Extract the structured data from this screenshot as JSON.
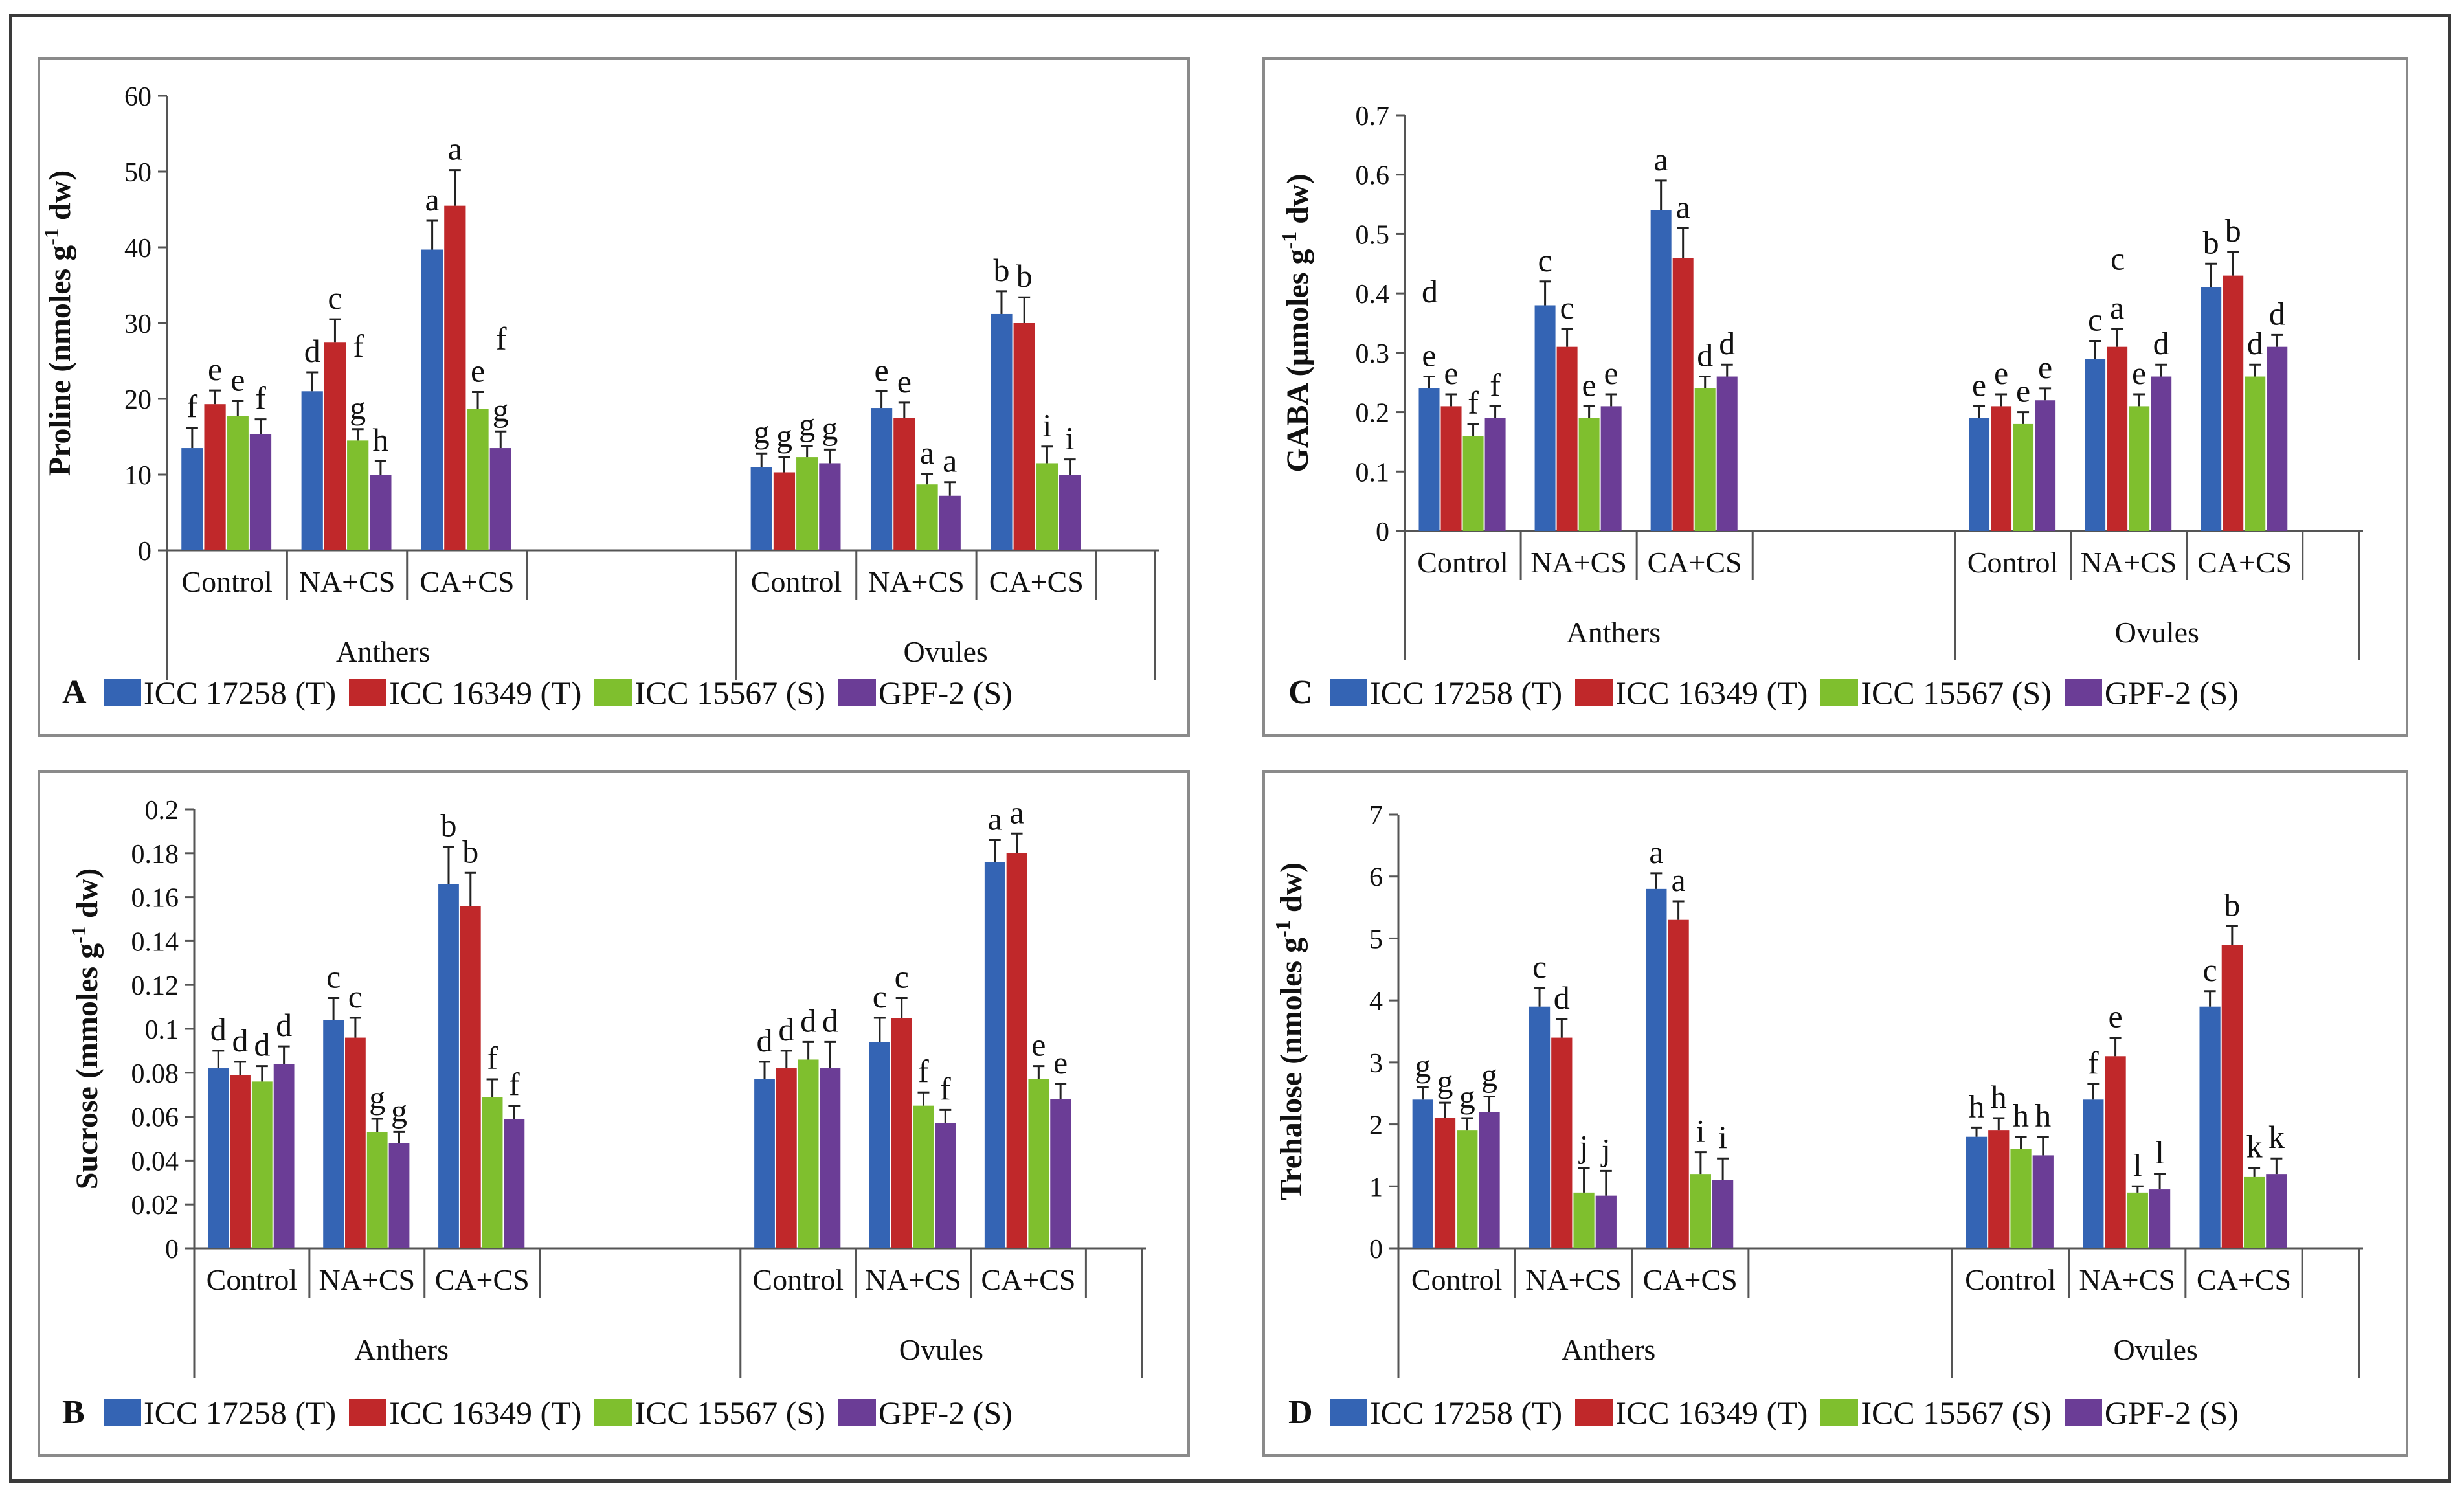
{
  "legend": [
    {
      "label": "ICC 17258 (T)",
      "color": "#3464b4"
    },
    {
      "label": "ICC 16349 (T)",
      "color": "#c0282a"
    },
    {
      "label": "ICC 15567 (S)",
      "color": "#7fbf2e"
    },
    {
      "label": "GPF-2 (S)",
      "color": "#6b3d96"
    }
  ],
  "chart_data": [
    {
      "panel": "A",
      "type": "bar",
      "ylabel": "Proline (nmoles g-1 dw)",
      "ylabel_prefix": "Proline (nmoles g",
      "ylabel_sup": "-1",
      "ylabel_suffix": " dw)",
      "ylim": [
        0,
        60
      ],
      "yticks": [
        0,
        10,
        20,
        30,
        40,
        50,
        60
      ],
      "ytick_labels": [
        "0",
        "10",
        "20",
        "30",
        "40",
        "50",
        "60"
      ],
      "tissues": [
        "Anthers",
        "Ovules"
      ],
      "categories": [
        "Control",
        "NA+CS",
        "CA+CS"
      ],
      "series": [
        {
          "name": "ICC 17258 (T)",
          "values": [
            [
              13.5,
              21,
              39.7
            ],
            [
              11,
              18.8,
              31.2
            ]
          ],
          "errors": [
            [
              2.7,
              2.5,
              3.8
            ],
            [
              1.8,
              2.2,
              3
            ]
          ],
          "letters": [
            [
              "f",
              "d",
              "a"
            ],
            [
              "g",
              "e",
              "b"
            ]
          ]
        },
        {
          "name": "ICC 16349 (T)",
          "values": [
            [
              19.3,
              27.5,
              45.5
            ],
            [
              10.3,
              17.5,
              30
            ]
          ],
          "errors": [
            [
              1.8,
              3,
              4.7
            ],
            [
              2,
              2,
              3.4
            ]
          ],
          "letters": [
            [
              "e",
              "c",
              "a"
            ],
            [
              "g",
              "e",
              "b"
            ]
          ]
        },
        {
          "name": "ICC 15567 (S)",
          "values": [
            [
              17.7,
              14.5,
              18.7
            ],
            [
              12.3,
              8.7,
              11.5
            ]
          ],
          "errors": [
            [
              2,
              1.5,
              2.2
            ],
            [
              1.5,
              1.4,
              2.2
            ]
          ],
          "letters": [
            [
              "e",
              "g",
              "e"
            ],
            [
              "g",
              "a",
              "i"
            ]
          ]
        },
        {
          "name": "GPF-2 (S)",
          "values": [
            [
              15.3,
              10,
              13.5
            ],
            [
              11.5,
              7.2,
              10
            ]
          ],
          "errors": [
            [
              2,
              1.8,
              2.2
            ],
            [
              1.8,
              1.8,
              2
            ]
          ],
          "letters": [
            [
              "f",
              "h",
              "g"
            ],
            [
              "g",
              "a",
              "i"
            ]
          ]
        }
      ],
      "extra_letters": [
        [
          "f",
          2,
          1,
          25.5
        ],
        [
          "f",
          0,
          3,
          26.5
        ]
      ]
    },
    {
      "panel": "B",
      "type": "bar",
      "ylabel": "Sucrose (mmoles g-1 dw)",
      "ylabel_prefix": "Sucrose (mmoles g",
      "ylabel_sup": "-1",
      "ylabel_suffix": " dw)",
      "ylim": [
        0,
        0.2
      ],
      "yticks": [
        0,
        0.02,
        0.04,
        0.06,
        0.08,
        0.1,
        0.12,
        0.14,
        0.16,
        0.18,
        0.2
      ],
      "ytick_labels": [
        "0",
        "0.02",
        "0.04",
        "0.06",
        "0.08",
        "0.1",
        "0.12",
        "0.14",
        "0.16",
        "0.18",
        "0.2"
      ],
      "tissues": [
        "Anthers",
        "Ovules"
      ],
      "categories": [
        "Control",
        "NA+CS",
        "CA+CS"
      ],
      "series": [
        {
          "name": "ICC 17258 (T)",
          "values": [
            [
              0.082,
              0.104,
              0.166
            ],
            [
              0.077,
              0.094,
              0.176
            ]
          ],
          "errors": [
            [
              0.008,
              0.01,
              0.017
            ],
            [
              0.008,
              0.011,
              0.01
            ]
          ],
          "letters": [
            [
              "d",
              "c",
              "b"
            ],
            [
              "d",
              "c",
              "a"
            ]
          ]
        },
        {
          "name": "ICC 16349 (T)",
          "values": [
            [
              0.079,
              0.096,
              0.156
            ],
            [
              0.082,
              0.105,
              0.18
            ]
          ],
          "errors": [
            [
              0.006,
              0.009,
              0.015
            ],
            [
              0.008,
              0.009,
              0.009
            ]
          ],
          "letters": [
            [
              "d",
              "c",
              "b"
            ],
            [
              "d",
              "c",
              "a"
            ]
          ]
        },
        {
          "name": "ICC 15567 (S)",
          "values": [
            [
              0.076,
              0.053,
              0.069
            ],
            [
              0.086,
              0.065,
              0.077
            ]
          ],
          "errors": [
            [
              0.007,
              0.006,
              0.008
            ],
            [
              0.008,
              0.006,
              0.006
            ]
          ],
          "letters": [
            [
              "d",
              "g",
              "f"
            ],
            [
              "d",
              "f",
              "e"
            ]
          ]
        },
        {
          "name": "GPF-2 (S)",
          "values": [
            [
              0.084,
              0.048,
              0.059
            ],
            [
              0.082,
              0.057,
              0.068
            ]
          ],
          "errors": [
            [
              0.008,
              0.005,
              0.006
            ],
            [
              0.012,
              0.006,
              0.007
            ]
          ],
          "letters": [
            [
              "d",
              "g",
              "f"
            ],
            [
              "d",
              "f",
              "e"
            ]
          ]
        }
      ],
      "extra_letters": []
    },
    {
      "panel": "C",
      "type": "bar",
      "ylabel": "GABA (µmoles g-1 dw)",
      "ylabel_prefix": "GABA (µmoles g",
      "ylabel_sup": "-1",
      "ylabel_suffix": " dw)",
      "ylim": [
        0,
        0.7
      ],
      "yticks": [
        0,
        0.1,
        0.2,
        0.3,
        0.4,
        0.5,
        0.6,
        0.7
      ],
      "ytick_labels": [
        "0",
        "0.1",
        "0.2",
        "0.3",
        "0.4",
        "0.5",
        "0.6",
        "0.7"
      ],
      "tissues": [
        "Anthers",
        "Ovules"
      ],
      "categories": [
        "Control",
        "NA+CS",
        "CA+CS"
      ],
      "series": [
        {
          "name": "ICC 17258 (T)",
          "values": [
            [
              0.24,
              0.38,
              0.54
            ],
            [
              0.19,
              0.29,
              0.41
            ]
          ],
          "errors": [
            [
              0.02,
              0.04,
              0.05
            ],
            [
              0.02,
              0.03,
              0.04
            ]
          ],
          "letters": [
            [
              "e",
              "c",
              "a"
            ],
            [
              "e",
              "c",
              "b"
            ]
          ]
        },
        {
          "name": "ICC 16349 (T)",
          "values": [
            [
              0.21,
              0.31,
              0.46
            ],
            [
              0.21,
              0.31,
              0.43
            ]
          ],
          "errors": [
            [
              0.02,
              0.03,
              0.05
            ],
            [
              0.02,
              0.03,
              0.04
            ]
          ],
          "letters": [
            [
              "e",
              "c",
              "a"
            ],
            [
              "e",
              "a",
              "b"
            ]
          ]
        },
        {
          "name": "ICC 15567 (S)",
          "values": [
            [
              0.16,
              0.19,
              0.24
            ],
            [
              0.18,
              0.21,
              0.26
            ]
          ],
          "errors": [
            [
              0.02,
              0.02,
              0.02
            ],
            [
              0.02,
              0.02,
              0.02
            ]
          ],
          "letters": [
            [
              "f",
              "e",
              "d"
            ],
            [
              "e",
              "e",
              "d"
            ]
          ]
        },
        {
          "name": "GPF-2 (S)",
          "values": [
            [
              0.19,
              0.21,
              0.26
            ],
            [
              0.22,
              0.26,
              0.31
            ]
          ],
          "errors": [
            [
              0.02,
              0.02,
              0.02
            ],
            [
              0.02,
              0.02,
              0.02
            ]
          ],
          "letters": [
            [
              "f",
              "e",
              "d"
            ],
            [
              "e",
              "d",
              "d"
            ]
          ]
        }
      ],
      "extra_letters": [
        [
          "d",
          0,
          0,
          0.385
        ],
        [
          "c",
          1,
          1,
          0.44
        ]
      ]
    },
    {
      "panel": "D",
      "type": "bar",
      "ylabel": "Trehalose (nmoles g-1 dw)",
      "ylabel_prefix": "Trehalose (nmoles g",
      "ylabel_sup": "-1",
      "ylabel_suffix": " dw)",
      "ylim": [
        0,
        7
      ],
      "yticks": [
        0,
        1,
        2,
        3,
        4,
        5,
        6,
        7
      ],
      "ytick_labels": [
        "0",
        "1",
        "2",
        "3",
        "4",
        "5",
        "6",
        "7"
      ],
      "tissues": [
        "Anthers",
        "Ovules"
      ],
      "categories": [
        "Control",
        "NA+CS",
        "CA+CS"
      ],
      "series": [
        {
          "name": "ICC 17258 (T)",
          "values": [
            [
              2.4,
              3.9,
              5.8
            ],
            [
              1.8,
              2.4,
              3.9
            ]
          ],
          "errors": [
            [
              0.2,
              0.3,
              0.25
            ],
            [
              0.15,
              0.25,
              0.25
            ]
          ],
          "letters": [
            [
              "g",
              "c",
              "a"
            ],
            [
              "h",
              "f",
              "c"
            ]
          ]
        },
        {
          "name": "ICC 16349 (T)",
          "values": [
            [
              2.1,
              3.4,
              5.3
            ],
            [
              1.9,
              3.1,
              4.9
            ]
          ],
          "errors": [
            [
              0.25,
              0.3,
              0.3
            ],
            [
              0.2,
              0.3,
              0.3
            ]
          ],
          "letters": [
            [
              "g",
              "d",
              "a"
            ],
            [
              "h",
              "e",
              "b"
            ]
          ]
        },
        {
          "name": "ICC 15567 (S)",
          "values": [
            [
              1.9,
              0.9,
              1.2
            ],
            [
              1.6,
              0.9,
              1.15
            ]
          ],
          "errors": [
            [
              0.2,
              0.4,
              0.35
            ],
            [
              0.2,
              0.1,
              0.15
            ]
          ],
          "letters": [
            [
              "g",
              "j",
              "i"
            ],
            [
              "h",
              "l",
              "k"
            ]
          ]
        },
        {
          "name": "GPF-2 (S)",
          "values": [
            [
              2.2,
              0.85,
              1.1
            ],
            [
              1.5,
              0.95,
              1.2
            ]
          ],
          "errors": [
            [
              0.25,
              0.4,
              0.35
            ],
            [
              0.3,
              0.25,
              0.25
            ]
          ],
          "letters": [
            [
              "g",
              "j",
              "i"
            ],
            [
              "h",
              "l",
              "k"
            ]
          ]
        }
      ],
      "extra_letters": []
    }
  ]
}
